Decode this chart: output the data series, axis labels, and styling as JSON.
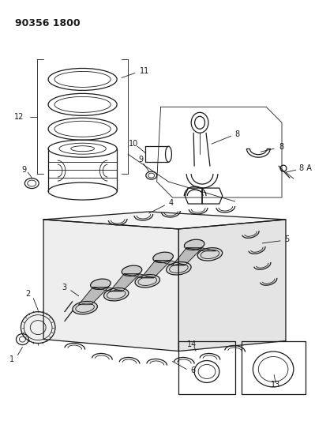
{
  "title": "90356 1800",
  "bg_color": "#ffffff",
  "lc": "#1a1a1a",
  "title_fontsize": 9,
  "label_fontsize": 7,
  "fig_width": 3.99,
  "fig_height": 5.33,
  "dpi": 100
}
